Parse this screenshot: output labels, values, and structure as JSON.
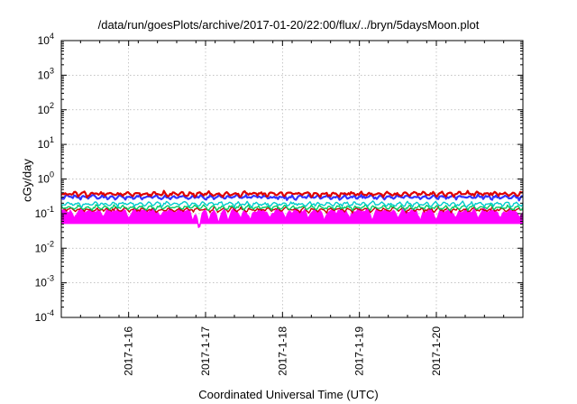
{
  "chart_data": {
    "type": "area",
    "title": "/data/run/goesPlots/archive/2017-01-20/22:00/flux/../bryn/5daysMoon.plot",
    "xlabel": "Coordinated Universal Time (UTC)",
    "ylabel": "cGy/day",
    "yscale": "log",
    "ylim": [
      0.0001,
      10000
    ],
    "xlim": [
      "2017-01-15T03:00",
      "2017-01-21T03:00"
    ],
    "grid": true,
    "legend": "none",
    "y_ticks": [
      {
        "base": "10",
        "exp": "-4"
      },
      {
        "base": "10",
        "exp": "-3"
      },
      {
        "base": "10",
        "exp": "-2"
      },
      {
        "base": "10",
        "exp": "-1"
      },
      {
        "base": "10",
        "exp": "0"
      },
      {
        "base": "10",
        "exp": "1"
      },
      {
        "base": "10",
        "exp": "2"
      },
      {
        "base": "10",
        "exp": "3"
      },
      {
        "base": "10",
        "exp": "4"
      }
    ],
    "x_ticks": [
      {
        "label": "2017-1-16",
        "x": "2017-01-16T00:00"
      },
      {
        "label": "2017-1-17",
        "x": "2017-01-17T00:00"
      },
      {
        "label": "2017-1-18",
        "x": "2017-01-18T00:00"
      },
      {
        "label": "2017-1-19",
        "x": "2017-01-19T00:00"
      },
      {
        "label": "2017-1-20",
        "x": "2017-01-20T00:00"
      }
    ],
    "series": [
      {
        "color": "#ff00ff",
        "mean": 0.12,
        "dips": [
          {
            "x": "2017-01-15T07:00",
            "y": 0.07
          },
          {
            "x": "2017-01-15T16:00",
            "y": 0.08
          },
          {
            "x": "2017-01-16T00:00",
            "y": 0.07
          },
          {
            "x": "2017-01-16T10:00",
            "y": 0.08
          },
          {
            "x": "2017-01-16T20:00",
            "y": 0.06
          },
          {
            "x": "2017-01-16T22:00",
            "y": 0.025
          },
          {
            "x": "2017-01-17T01:00",
            "y": 0.06
          },
          {
            "x": "2017-01-17T04:00",
            "y": 0.05
          },
          {
            "x": "2017-01-17T07:00",
            "y": 0.06
          },
          {
            "x": "2017-01-17T11:00",
            "y": 0.07
          },
          {
            "x": "2017-01-17T14:00",
            "y": 0.06
          },
          {
            "x": "2017-01-17T20:00",
            "y": 0.07
          },
          {
            "x": "2017-01-18T01:00",
            "y": 0.07
          },
          {
            "x": "2017-01-18T08:00",
            "y": 0.07
          },
          {
            "x": "2017-01-18T13:00",
            "y": 0.06
          },
          {
            "x": "2017-01-18T21:00",
            "y": 0.07
          },
          {
            "x": "2017-01-19T04:00",
            "y": 0.06
          },
          {
            "x": "2017-01-19T12:00",
            "y": 0.07
          },
          {
            "x": "2017-01-19T19:00",
            "y": 0.06
          },
          {
            "x": "2017-01-20T00:00",
            "y": 0.06
          },
          {
            "x": "2017-01-20T06:00",
            "y": 0.07
          },
          {
            "x": "2017-01-20T13:00",
            "y": 0.07
          },
          {
            "x": "2017-01-20T20:00",
            "y": 0.07
          },
          {
            "x": "2017-01-21T02:00",
            "y": 0.07
          }
        ]
      },
      {
        "color": "#cc0000",
        "mean": 0.13,
        "dips": []
      },
      {
        "color": "#00cc66",
        "mean": 0.15,
        "dips": []
      },
      {
        "color": "#00cccc",
        "mean": 0.19,
        "dips": []
      },
      {
        "color": "#3333ff",
        "mean": 0.3,
        "dips": []
      },
      {
        "color": "#dd0000",
        "mean": 0.37,
        "dips": []
      }
    ]
  }
}
